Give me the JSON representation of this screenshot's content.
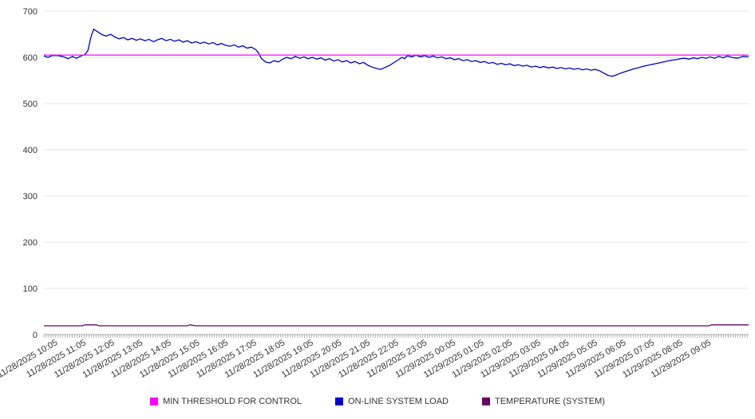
{
  "chart_data": {
    "type": "line",
    "title": "",
    "xlabel": "",
    "ylabel": "",
    "ylim": [
      0,
      700
    ],
    "yticks": [
      0,
      100,
      200,
      300,
      400,
      500,
      600,
      700
    ],
    "grid": true,
    "legend_position": "bottom",
    "x_unit": "hours offset from first tick label",
    "xlim": [
      -0.5,
      24.3
    ],
    "x_labels": [
      "11/28/2025 10:05",
      "11/28/2025 11:05",
      "11/28/2025 12:05",
      "11/28/2025 13:05",
      "11/28/2025 14:05",
      "11/28/2025 15:05",
      "11/28/2025 16:05",
      "11/28/2025 17:05",
      "11/28/2025 18:05",
      "11/28/2025 19:05",
      "11/28/2025 20:05",
      "11/28/2025 21:05",
      "11/28/2025 22:05",
      "11/28/2025 23:05",
      "11/29/2025 00:05",
      "11/29/2025 01:05",
      "11/29/2025 02:05",
      "11/29/2025 03:05",
      "11/29/2025 04:05",
      "11/29/2025 05:05",
      "11/29/2025 06:05",
      "11/29/2025 07:05",
      "11/29/2025 08:05",
      "11/29/2025 09:05"
    ],
    "series": [
      {
        "name": "MIN THRESHOLD FOR CONTROL",
        "color": "#ff00ff",
        "points": [
          [
            -0.5,
            605
          ],
          [
            24.3,
            605
          ]
        ]
      },
      {
        "name": "ON-LINE SYSTEM LOAD",
        "color": "#0000cd",
        "points": [
          [
            -0.5,
            603
          ],
          [
            -0.35,
            600
          ],
          [
            -0.2,
            604
          ],
          [
            0,
            604
          ],
          [
            0.2,
            601
          ],
          [
            0.35,
            597
          ],
          [
            0.5,
            602
          ],
          [
            0.65,
            598
          ],
          [
            0.8,
            603
          ],
          [
            0.95,
            606
          ],
          [
            1.05,
            615
          ],
          [
            1.15,
            642
          ],
          [
            1.25,
            661
          ],
          [
            1.4,
            655
          ],
          [
            1.55,
            649
          ],
          [
            1.7,
            646
          ],
          [
            1.85,
            650
          ],
          [
            2.0,
            644
          ],
          [
            2.15,
            640
          ],
          [
            2.3,
            643
          ],
          [
            2.45,
            638
          ],
          [
            2.6,
            641
          ],
          [
            2.75,
            637
          ],
          [
            2.9,
            640
          ],
          [
            3.05,
            636
          ],
          [
            3.2,
            639
          ],
          [
            3.35,
            634
          ],
          [
            3.5,
            638
          ],
          [
            3.65,
            641
          ],
          [
            3.8,
            636
          ],
          [
            3.95,
            639
          ],
          [
            4.1,
            635
          ],
          [
            4.25,
            638
          ],
          [
            4.4,
            633
          ],
          [
            4.55,
            636
          ],
          [
            4.7,
            631
          ],
          [
            4.85,
            634
          ],
          [
            5.0,
            630
          ],
          [
            5.15,
            633
          ],
          [
            5.3,
            629
          ],
          [
            5.45,
            632
          ],
          [
            5.6,
            627
          ],
          [
            5.75,
            630
          ],
          [
            5.9,
            626
          ],
          [
            6.05,
            624
          ],
          [
            6.2,
            627
          ],
          [
            6.35,
            622
          ],
          [
            6.5,
            625
          ],
          [
            6.65,
            620
          ],
          [
            6.8,
            622
          ],
          [
            6.95,
            617
          ],
          [
            7.05,
            610
          ],
          [
            7.15,
            598
          ],
          [
            7.3,
            590
          ],
          [
            7.45,
            588
          ],
          [
            7.6,
            593
          ],
          [
            7.75,
            590
          ],
          [
            7.9,
            596
          ],
          [
            8.05,
            600
          ],
          [
            8.2,
            597
          ],
          [
            8.35,
            602
          ],
          [
            8.5,
            598
          ],
          [
            8.65,
            601
          ],
          [
            8.8,
            597
          ],
          [
            8.95,
            600
          ],
          [
            9.1,
            596
          ],
          [
            9.25,
            599
          ],
          [
            9.4,
            594
          ],
          [
            9.55,
            597
          ],
          [
            9.7,
            592
          ],
          [
            9.85,
            595
          ],
          [
            10.0,
            590
          ],
          [
            10.15,
            593
          ],
          [
            10.3,
            588
          ],
          [
            10.45,
            591
          ],
          [
            10.6,
            586
          ],
          [
            10.75,
            589
          ],
          [
            10.9,
            583
          ],
          [
            11.05,
            579
          ],
          [
            11.2,
            576
          ],
          [
            11.35,
            574
          ],
          [
            11.5,
            578
          ],
          [
            11.65,
            582
          ],
          [
            11.8,
            588
          ],
          [
            11.95,
            594
          ],
          [
            12.1,
            600
          ],
          [
            12.2,
            597
          ],
          [
            12.3,
            604
          ],
          [
            12.45,
            601
          ],
          [
            12.6,
            605
          ],
          [
            12.75,
            601
          ],
          [
            12.9,
            604
          ],
          [
            13.05,
            600
          ],
          [
            13.2,
            603
          ],
          [
            13.35,
            599
          ],
          [
            13.5,
            601
          ],
          [
            13.65,
            597
          ],
          [
            13.8,
            599
          ],
          [
            13.95,
            595
          ],
          [
            14.1,
            597
          ],
          [
            14.25,
            593
          ],
          [
            14.4,
            595
          ],
          [
            14.55,
            591
          ],
          [
            14.7,
            593
          ],
          [
            14.85,
            589
          ],
          [
            15.0,
            591
          ],
          [
            15.15,
            587
          ],
          [
            15.3,
            589
          ],
          [
            15.45,
            585
          ],
          [
            15.6,
            587
          ],
          [
            15.75,
            584
          ],
          [
            15.9,
            586
          ],
          [
            16.05,
            582
          ],
          [
            16.2,
            584
          ],
          [
            16.35,
            581
          ],
          [
            16.5,
            583
          ],
          [
            16.65,
            579
          ],
          [
            16.8,
            581
          ],
          [
            16.95,
            578
          ],
          [
            17.1,
            580
          ],
          [
            17.25,
            577
          ],
          [
            17.4,
            579
          ],
          [
            17.55,
            576
          ],
          [
            17.7,
            578
          ],
          [
            17.85,
            575
          ],
          [
            18.0,
            577
          ],
          [
            18.15,
            574
          ],
          [
            18.3,
            576
          ],
          [
            18.45,
            573
          ],
          [
            18.6,
            575
          ],
          [
            18.75,
            572
          ],
          [
            18.9,
            574
          ],
          [
            19.05,
            571
          ],
          [
            19.2,
            566
          ],
          [
            19.35,
            561
          ],
          [
            19.5,
            559
          ],
          [
            19.65,
            562
          ],
          [
            19.8,
            566
          ],
          [
            19.95,
            569
          ],
          [
            20.1,
            572
          ],
          [
            20.25,
            575
          ],
          [
            20.4,
            577
          ],
          [
            20.55,
            580
          ],
          [
            20.7,
            582
          ],
          [
            20.85,
            584
          ],
          [
            21.0,
            586
          ],
          [
            21.15,
            588
          ],
          [
            21.3,
            590
          ],
          [
            21.45,
            592
          ],
          [
            21.6,
            594
          ],
          [
            21.75,
            595
          ],
          [
            21.9,
            597
          ],
          [
            22.05,
            598
          ],
          [
            22.2,
            596
          ],
          [
            22.35,
            599
          ],
          [
            22.5,
            597
          ],
          [
            22.65,
            600
          ],
          [
            22.8,
            598
          ],
          [
            22.95,
            601
          ],
          [
            23.1,
            598
          ],
          [
            23.25,
            602
          ],
          [
            23.4,
            599
          ],
          [
            23.55,
            603
          ],
          [
            23.7,
            600
          ],
          [
            23.9,
            598
          ],
          [
            24.1,
            602
          ],
          [
            24.3,
            601
          ]
        ]
      },
      {
        "name": "TEMPERATURE (SYSTEM)",
        "color": "#6a006a",
        "points": [
          [
            -0.5,
            19
          ],
          [
            0.85,
            19
          ],
          [
            0.95,
            21
          ],
          [
            1.35,
            21
          ],
          [
            1.45,
            19
          ],
          [
            4.55,
            19
          ],
          [
            4.65,
            21
          ],
          [
            4.85,
            19
          ],
          [
            22.9,
            19
          ],
          [
            23.0,
            21
          ],
          [
            24.3,
            21
          ]
        ]
      }
    ]
  },
  "ui": {
    "axis_color": "#aaaaaa",
    "grid_color": "#e3e3e3",
    "tick_text_color": "#333333"
  }
}
